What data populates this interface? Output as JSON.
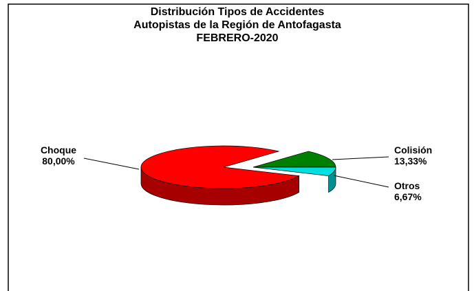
{
  "chart_data": {
    "type": "pie",
    "title": [
      "Distribución Tipos de Accidentes",
      "Autopistas de la Región de Antofagasta",
      "FEBRERO-2020"
    ],
    "categories": [
      "Choque",
      "Colisión",
      "Otros"
    ],
    "values": [
      80,
      13.33,
      6.67
    ],
    "value_labels": [
      "80,00%",
      "13,33%",
      "6,67%"
    ],
    "colors": [
      "#ff0000",
      "#008000",
      "#00e0e0"
    ]
  }
}
